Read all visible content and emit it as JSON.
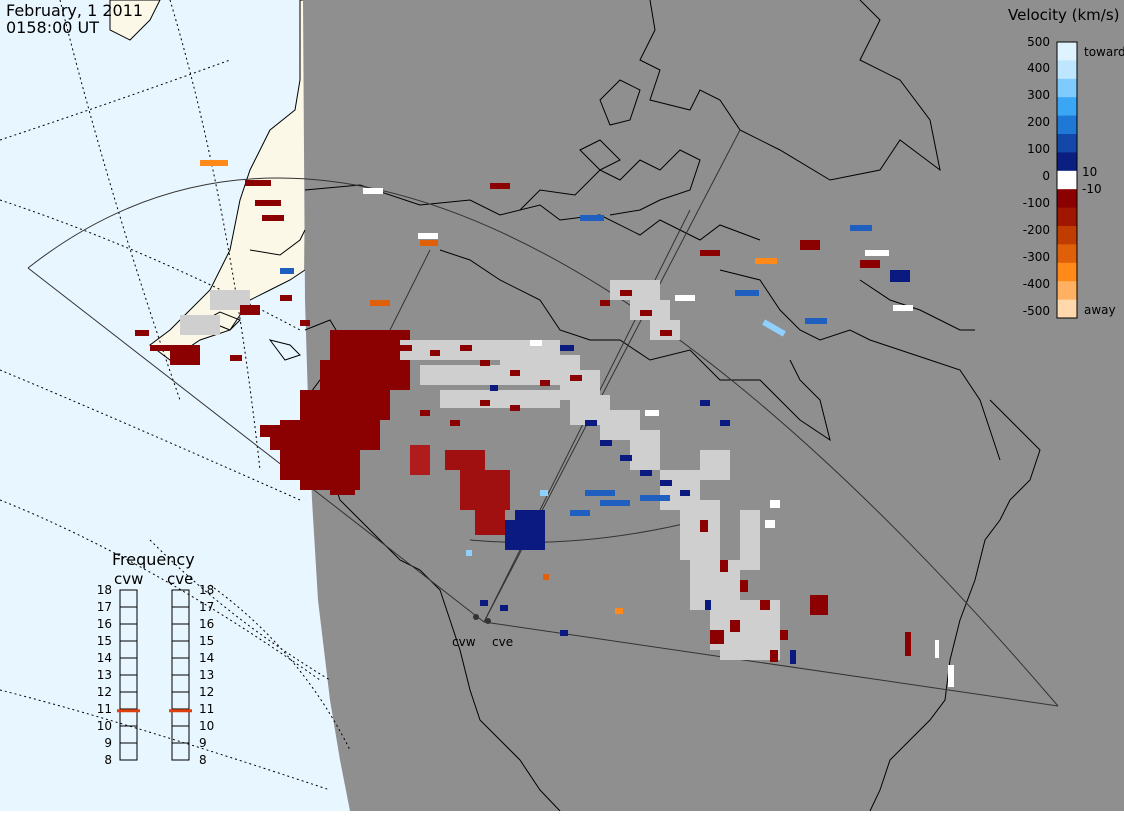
{
  "header": {
    "date": "February, 1 2011",
    "time": "0158:00 UT"
  },
  "colorbar": {
    "title": "Velocity (km/s)",
    "toward_label": "toward",
    "away_label": "away",
    "ticks": [
      "500",
      "400",
      "300",
      "200",
      "100",
      "10",
      "0",
      "-10",
      "-100",
      "-200",
      "-300",
      "-400",
      "-500"
    ],
    "colors": [
      "#dff3ff",
      "#bfe6ff",
      "#7fcbff",
      "#3ba6f3",
      "#1f78d6",
      "#1448a8",
      "#0a1f80",
      "#ffffff",
      "#8b0000",
      "#a01600",
      "#c03c00",
      "#e0600a",
      "#ff8a1a",
      "#ffb060",
      "#ffd9ab"
    ]
  },
  "frequency": {
    "title": "Frequency",
    "radars": [
      "cvw",
      "cve"
    ],
    "scale": [
      "18",
      "17",
      "16",
      "15",
      "14",
      "13",
      "12",
      "11",
      "10",
      "9",
      "8"
    ],
    "selected_mhz": [
      10.9,
      10.9
    ]
  },
  "map": {
    "ocean_color": "#e8f6ff",
    "land_color": "#fbf8e8",
    "night_color": "#8f8f8f",
    "radar_sites": [
      {
        "name": "cvw"
      },
      {
        "name": "cve"
      }
    ]
  }
}
